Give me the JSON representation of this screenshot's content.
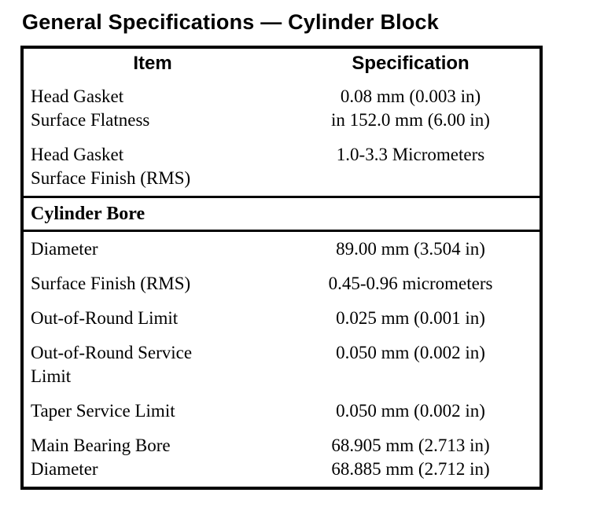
{
  "page_title": "General Specifications — Cylinder Block",
  "table": {
    "headers": {
      "item": "Item",
      "specification": "Specification"
    },
    "section1": {
      "rows": [
        {
          "item": "Head Gasket\nSurface Flatness",
          "spec": "0.08 mm (0.003 in)\nin 152.0 mm (6.00 in)"
        },
        {
          "item": "Head Gasket\nSurface Finish (RMS)",
          "spec": "1.0-3.3 Micrometers"
        }
      ]
    },
    "section2": {
      "title": "Cylinder Bore",
      "rows": [
        {
          "item": "Diameter",
          "spec": "89.00 mm (3.504 in)"
        },
        {
          "item": "Surface Finish (RMS)",
          "spec": "0.45-0.96 micrometers"
        },
        {
          "item": "Out-of-Round Limit",
          "spec": "0.025 mm (0.001 in)"
        },
        {
          "item": "Out-of-Round Service\nLimit",
          "spec": "0.050 mm (0.002 in)"
        },
        {
          "item": "Taper Service Limit",
          "spec": "0.050 mm (0.002 in)"
        },
        {
          "item": "Main Bearing Bore\nDiameter",
          "spec": "68.905 mm (2.713 in)\n68.885 mm (2.712 in)"
        }
      ]
    }
  },
  "colors": {
    "ink": "#000000",
    "paper": "#ffffff"
  }
}
